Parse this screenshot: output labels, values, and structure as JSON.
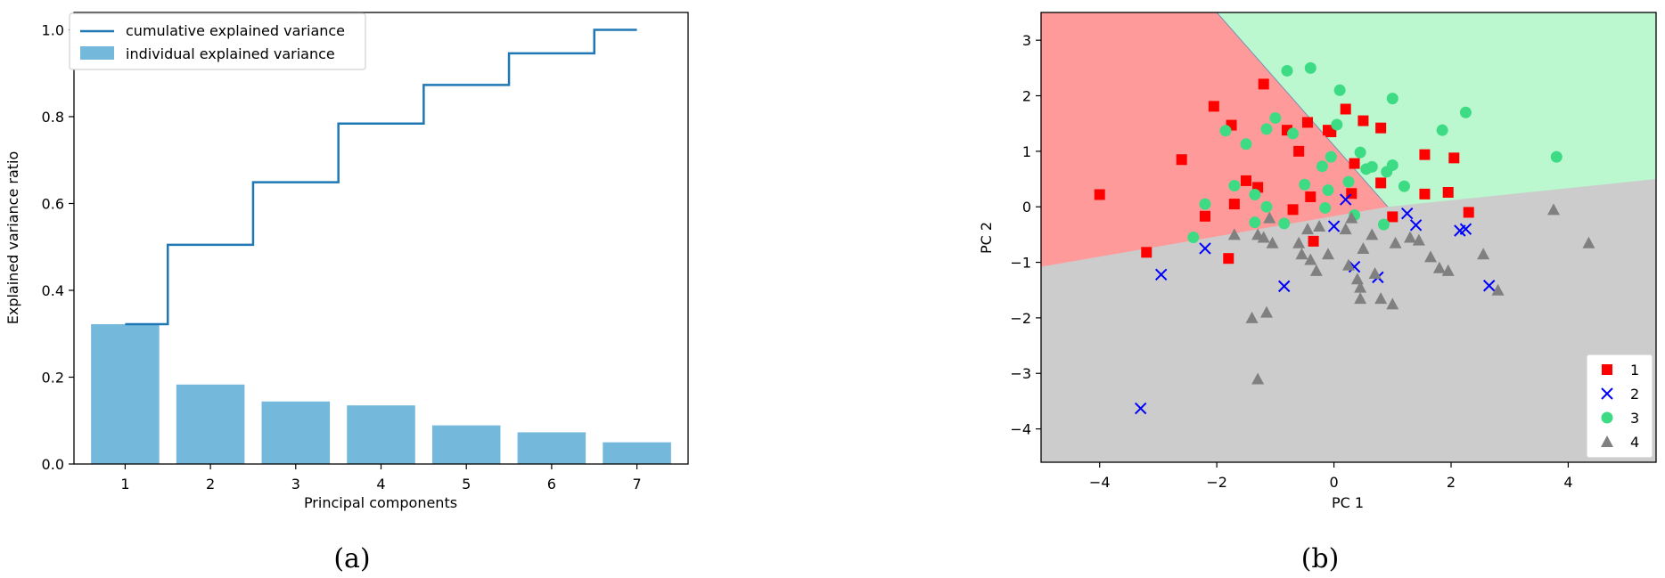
{
  "chart_data": [
    {
      "type": "bar",
      "panel_label": "(a)",
      "title": "",
      "xlabel": "Principal components",
      "ylabel": "Explained variance ratio",
      "categories": [
        "1",
        "2",
        "3",
        "4",
        "5",
        "6",
        "7"
      ],
      "series": [
        {
          "name": "individual explained variance",
          "kind": "bar",
          "color": "#74b9dc",
          "values": [
            0.322,
            0.183,
            0.144,
            0.135,
            0.089,
            0.073,
            0.05
          ]
        },
        {
          "name": "cumulative explained variance",
          "kind": "step",
          "color": "#1f77b4",
          "values": [
            0.322,
            0.505,
            0.649,
            0.784,
            0.873,
            0.946,
            1.0
          ]
        }
      ],
      "ylim": [
        0,
        1.04
      ],
      "yticks": [
        "0.0",
        "0.2",
        "0.4",
        "0.6",
        "0.8",
        "1.0"
      ],
      "legend": "top-left",
      "grid": false
    },
    {
      "type": "scatter",
      "panel_label": "(b)",
      "title": "",
      "xlabel": "PC 1",
      "ylabel": "PC 2",
      "xlim": [
        -5,
        5.5
      ],
      "ylim": [
        -4.6,
        3.5
      ],
      "xticks": [
        "−4",
        "−2",
        "0",
        "2",
        "4"
      ],
      "yticks": [
        "−4",
        "−3",
        "−2",
        "−1",
        "0",
        "1",
        "2",
        "3"
      ],
      "regions": [
        {
          "class": "1",
          "color": "#ff9a9a"
        },
        {
          "class": "3",
          "color": "#bbf7cf"
        },
        {
          "class": "4",
          "color": "#cccccc"
        }
      ],
      "legend": "bottom-right",
      "grid": false,
      "series": [
        {
          "name": "1",
          "marker": "square",
          "color": "#ff0000",
          "points": [
            [
              -4.0,
              0.22
            ],
            [
              -3.2,
              -0.82
            ],
            [
              -2.6,
              0.85
            ],
            [
              -2.2,
              -0.17
            ],
            [
              -2.05,
              1.81
            ],
            [
              -1.8,
              -0.93
            ],
            [
              -1.75,
              1.47
            ],
            [
              -1.7,
              0.05
            ],
            [
              -1.5,
              0.47
            ],
            [
              -1.3,
              0.35
            ],
            [
              -1.2,
              2.21
            ],
            [
              -0.8,
              1.38
            ],
            [
              -0.7,
              -0.05
            ],
            [
              -0.6,
              1.0
            ],
            [
              -0.45,
              1.52
            ],
            [
              -0.4,
              0.18
            ],
            [
              -0.35,
              -0.62
            ],
            [
              -0.1,
              1.38
            ],
            [
              -0.05,
              1.35
            ],
            [
              0.2,
              1.76
            ],
            [
              0.3,
              0.24
            ],
            [
              0.35,
              0.78
            ],
            [
              0.5,
              1.55
            ],
            [
              0.8,
              1.42
            ],
            [
              0.8,
              0.43
            ],
            [
              1.0,
              -0.18
            ],
            [
              1.55,
              0.94
            ],
            [
              1.55,
              0.23
            ],
            [
              1.95,
              0.26
            ],
            [
              2.05,
              0.88
            ],
            [
              2.3,
              -0.1
            ]
          ]
        },
        {
          "name": "2",
          "marker": "x",
          "color": "#0000ff",
          "points": [
            [
              -3.3,
              -3.63
            ],
            [
              -2.95,
              -1.22
            ],
            [
              -2.2,
              -0.75
            ],
            [
              -0.85,
              -1.43
            ],
            [
              0.0,
              -0.35
            ],
            [
              0.2,
              0.13
            ],
            [
              0.35,
              -1.08
            ],
            [
              0.75,
              -1.27
            ],
            [
              1.25,
              -0.12
            ],
            [
              1.4,
              -0.33
            ],
            [
              2.15,
              -0.43
            ],
            [
              2.25,
              -0.4
            ],
            [
              2.65,
              -1.42
            ]
          ]
        },
        {
          "name": "3",
          "marker": "circle",
          "color": "#3ddc84",
          "points": [
            [
              -2.4,
              -0.55
            ],
            [
              -2.2,
              0.05
            ],
            [
              -1.85,
              1.37
            ],
            [
              -1.7,
              0.38
            ],
            [
              -1.5,
              1.13
            ],
            [
              -1.35,
              0.22
            ],
            [
              -1.35,
              -0.28
            ],
            [
              -1.15,
              1.4
            ],
            [
              -1.15,
              0.0
            ],
            [
              -1.0,
              1.6
            ],
            [
              -0.85,
              -0.3
            ],
            [
              -0.8,
              2.45
            ],
            [
              -0.7,
              1.32
            ],
            [
              -0.5,
              0.4
            ],
            [
              -0.4,
              2.5
            ],
            [
              -0.2,
              0.73
            ],
            [
              -0.15,
              -0.02
            ],
            [
              -0.1,
              0.3
            ],
            [
              -0.05,
              0.9
            ],
            [
              0.05,
              1.48
            ],
            [
              0.1,
              2.1
            ],
            [
              0.25,
              0.45
            ],
            [
              0.35,
              -0.15
            ],
            [
              0.45,
              0.98
            ],
            [
              0.55,
              0.68
            ],
            [
              0.65,
              0.72
            ],
            [
              0.85,
              -0.32
            ],
            [
              0.9,
              0.63
            ],
            [
              1.0,
              0.75
            ],
            [
              1.0,
              1.95
            ],
            [
              1.2,
              0.37
            ],
            [
              1.85,
              1.38
            ],
            [
              2.25,
              1.7
            ],
            [
              3.8,
              0.9
            ]
          ]
        },
        {
          "name": "4",
          "marker": "triangle",
          "color": "#808080",
          "points": [
            [
              -1.7,
              -0.5
            ],
            [
              -1.4,
              -2.0
            ],
            [
              -1.3,
              -3.1
            ],
            [
              -1.3,
              -0.5
            ],
            [
              -1.2,
              -0.55
            ],
            [
              -1.15,
              -1.9
            ],
            [
              -1.1,
              -0.2
            ],
            [
              -1.05,
              -0.65
            ],
            [
              -0.6,
              -0.65
            ],
            [
              -0.55,
              -0.85
            ],
            [
              -0.45,
              -0.4
            ],
            [
              -0.4,
              -0.95
            ],
            [
              -0.3,
              -1.15
            ],
            [
              -0.25,
              -0.35
            ],
            [
              -0.1,
              -0.85
            ],
            [
              0.2,
              -0.4
            ],
            [
              0.25,
              -1.05
            ],
            [
              0.3,
              -0.2
            ],
            [
              0.4,
              -1.3
            ],
            [
              0.45,
              -1.65
            ],
            [
              0.45,
              -1.45
            ],
            [
              0.5,
              -0.75
            ],
            [
              0.65,
              -0.5
            ],
            [
              0.7,
              -1.2
            ],
            [
              0.8,
              -1.65
            ],
            [
              1.0,
              -1.75
            ],
            [
              1.05,
              -0.65
            ],
            [
              1.3,
              -0.55
            ],
            [
              1.45,
              -0.6
            ],
            [
              1.65,
              -0.9
            ],
            [
              1.8,
              -1.1
            ],
            [
              1.95,
              -1.15
            ],
            [
              2.55,
              -0.85
            ],
            [
              2.8,
              -1.5
            ],
            [
              3.75,
              -0.05
            ],
            [
              4.35,
              -0.65
            ]
          ]
        }
      ]
    }
  ]
}
